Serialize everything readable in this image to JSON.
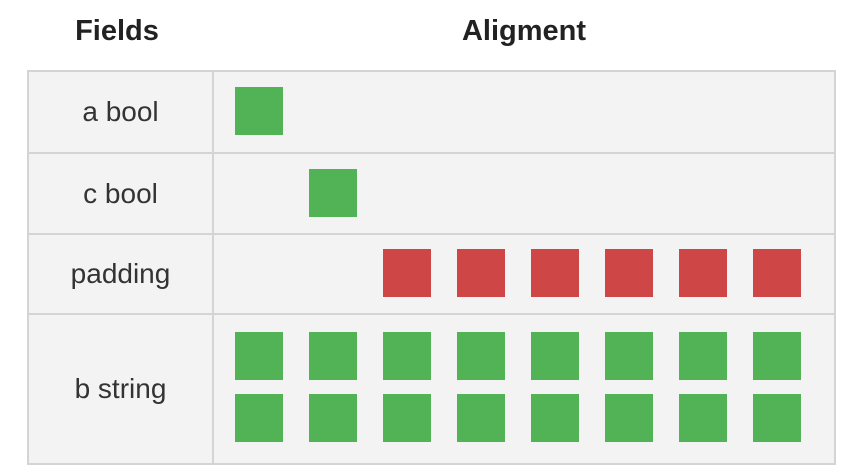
{
  "headers": {
    "fields": "Fields",
    "alignment": "Aligment"
  },
  "colors": {
    "field": "#52b356",
    "padding": "#cf4646",
    "grid_line": "#d4d4d4",
    "cell_bg": "#f3f3f3"
  },
  "rows": [
    {
      "label": "a bool",
      "kind": "field",
      "start_byte": 0,
      "bytes": 1,
      "lines": 1
    },
    {
      "label": "c bool",
      "kind": "field",
      "start_byte": 1,
      "bytes": 1,
      "lines": 1
    },
    {
      "label": "padding",
      "kind": "padding",
      "start_byte": 2,
      "bytes": 6,
      "lines": 1
    },
    {
      "label": "b string",
      "kind": "field",
      "start_byte": 0,
      "bytes": 16,
      "lines": 2
    }
  ]
}
